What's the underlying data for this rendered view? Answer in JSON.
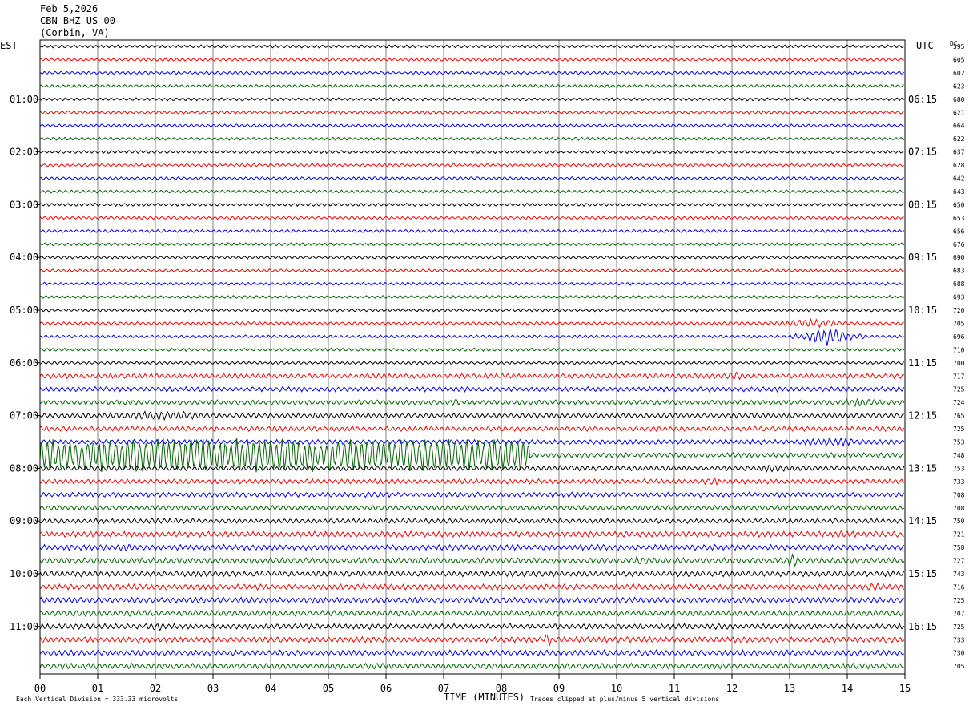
{
  "header": {
    "date": "Feb 5,2026",
    "station": "CBN BHZ US 00",
    "location": "(Corbin, VA)"
  },
  "left_tz": "EST",
  "right_tz": "UTC",
  "dc_label": "DC",
  "footer": {
    "scale": "Each Vertical Division =  333.33 microvolts",
    "xlabel": "TIME (MINUTES)",
    "clip": "Traces clipped at plus/minus 5 vertical divisions"
  },
  "colors": {
    "traces": [
      "#000000",
      "#ff0000",
      "#0000ff",
      "#006400"
    ],
    "grid": "#808080",
    "frame": "#000000"
  },
  "chart_data": {
    "type": "line",
    "title": "",
    "xlabel": "TIME (MINUTES)",
    "ylabel": "",
    "x_ticks": [
      "00",
      "01",
      "02",
      "03",
      "04",
      "05",
      "06",
      "07",
      "08",
      "09",
      "10",
      "11",
      "12",
      "13",
      "14",
      "15"
    ],
    "xlim": [
      0,
      15
    ],
    "trace_count": 48,
    "minutes_per_trace": 15,
    "left_hour_labels": [
      "01:00",
      "02:00",
      "03:00",
      "04:00",
      "05:00",
      "06:00",
      "07:00",
      "08:00",
      "09:00",
      "10:00",
      "11:00"
    ],
    "right_hour_labels": [
      "06:15",
      "07:15",
      "08:15",
      "09:15",
      "10:15",
      "11:15",
      "12:15",
      "13:15",
      "14:15",
      "15:15",
      "16:15"
    ],
    "dc_values": [
      "595",
      "605",
      "602",
      "623",
      "680",
      "621",
      "664",
      "622",
      "637",
      "628",
      "642",
      "643",
      "650",
      "653",
      "656",
      "676",
      "690",
      "683",
      "688",
      "693",
      "720",
      "705",
      "696",
      "710",
      "700",
      "717",
      "725",
      "724",
      "765",
      "725",
      "753",
      "748",
      "753",
      "733",
      "708",
      "708",
      "750",
      "721",
      "758",
      "727",
      "743",
      "716",
      "725",
      "707",
      "725",
      "733",
      "730",
      "705"
    ],
    "events": [
      {
        "trace": 21,
        "start_min": 12.3,
        "end_min": 14.4,
        "level": "moderate"
      },
      {
        "trace": 22,
        "start_min": 13.0,
        "end_min": 14.3,
        "level": "large"
      },
      {
        "trace": 25,
        "start_min": 11.6,
        "end_min": 12.5,
        "level": "moderate"
      },
      {
        "trace": 27,
        "start_min": 7.0,
        "end_min": 7.4,
        "level": "moderate"
      },
      {
        "trace": 27,
        "start_min": 13.5,
        "end_min": 15.0,
        "level": "moderate"
      },
      {
        "trace": 28,
        "start_min": 0.0,
        "end_min": 4.2,
        "level": "moderate"
      },
      {
        "trace": 30,
        "start_min": 12.5,
        "end_min": 15.0,
        "level": "moderate"
      },
      {
        "trace": 31,
        "start_min": 0.0,
        "end_min": 8.5,
        "level": "clipped"
      },
      {
        "trace": 32,
        "start_min": 12.2,
        "end_min": 13.3,
        "level": "moderate"
      },
      {
        "trace": 33,
        "start_min": 11.3,
        "end_min": 12.0,
        "level": "moderate"
      },
      {
        "trace": 37,
        "start_min": 13.4,
        "end_min": 14.5,
        "level": "moderate"
      },
      {
        "trace": 38,
        "start_min": 1.0,
        "end_min": 2.0,
        "level": "moderate"
      },
      {
        "trace": 39,
        "start_min": 9.8,
        "end_min": 11.0,
        "level": "moderate"
      },
      {
        "trace": 39,
        "start_min": 12.9,
        "end_min": 13.2,
        "level": "large"
      },
      {
        "trace": 41,
        "start_min": 14.0,
        "end_min": 15.0,
        "level": "moderate"
      },
      {
        "trace": 44,
        "start_min": 1.5,
        "end_min": 2.5,
        "level": "moderate"
      },
      {
        "trace": 45,
        "start_min": 8.7,
        "end_min": 8.9,
        "level": "large"
      }
    ]
  }
}
